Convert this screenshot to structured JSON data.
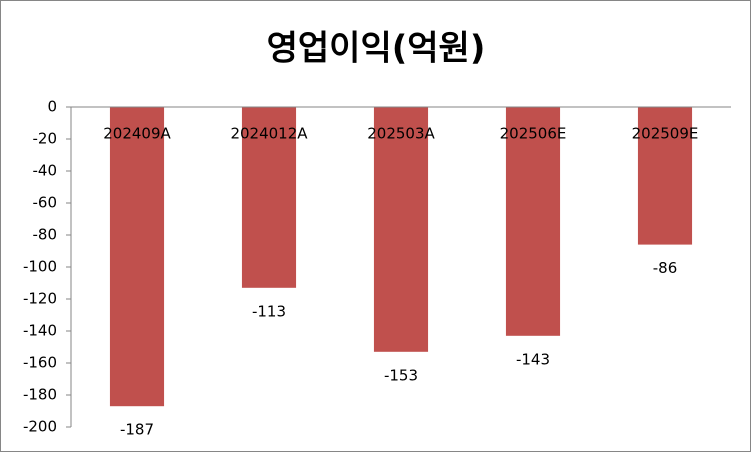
{
  "chart_data": {
    "type": "bar",
    "title": "영업이익(억원)",
    "categories": [
      "202409A",
      "2024012A",
      "202503A",
      "202506E",
      "202509E"
    ],
    "values": [
      -187,
      -113,
      -153,
      -143,
      -86
    ],
    "color": "#c0504d",
    "ylim": [
      -200,
      0
    ],
    "yticks": [
      0,
      -20,
      -40,
      -60,
      -80,
      -100,
      -120,
      -140,
      -160,
      -180,
      -200
    ],
    "grid": false
  }
}
